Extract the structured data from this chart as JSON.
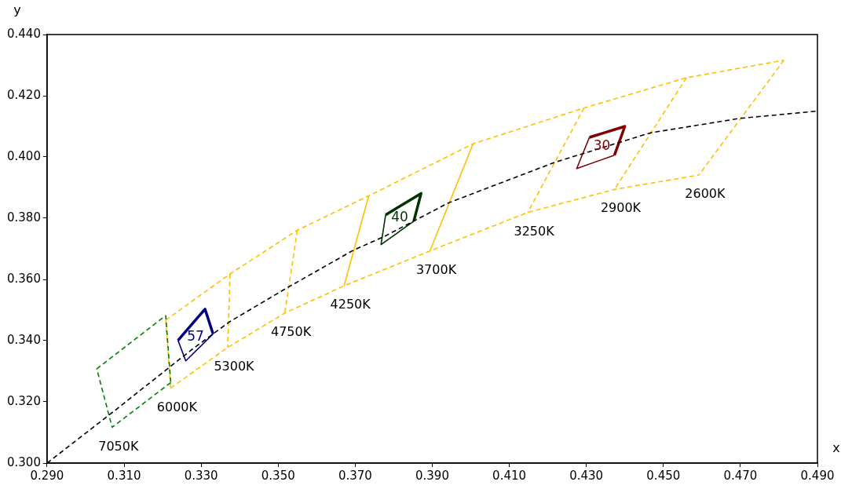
{
  "chart_data": {
    "type": "line",
    "xlabel": "x",
    "ylabel": "y",
    "xlim": [
      0.29,
      0.49
    ],
    "ylim": [
      0.3,
      0.44
    ],
    "xticks": [
      {
        "value": 0.29,
        "label": "0.290"
      },
      {
        "value": 0.31,
        "label": "0.310"
      },
      {
        "value": 0.33,
        "label": "0.330"
      },
      {
        "value": 0.35,
        "label": "0.350"
      },
      {
        "value": 0.37,
        "label": "0.370"
      },
      {
        "value": 0.39,
        "label": "0.390"
      },
      {
        "value": 0.41,
        "label": "0.410"
      },
      {
        "value": 0.43,
        "label": "0.430"
      },
      {
        "value": 0.45,
        "label": "0.450"
      },
      {
        "value": 0.47,
        "label": "0.470"
      },
      {
        "value": 0.49,
        "label": "0.490"
      }
    ],
    "yticks": [
      {
        "value": 0.3,
        "label": "0.300"
      },
      {
        "value": 0.32,
        "label": "0.320"
      },
      {
        "value": 0.34,
        "label": "0.340"
      },
      {
        "value": 0.36,
        "label": "0.360"
      },
      {
        "value": 0.38,
        "label": "0.380"
      },
      {
        "value": 0.4,
        "label": "0.400"
      },
      {
        "value": 0.42,
        "label": "0.420"
      },
      {
        "value": 0.44,
        "label": "0.440"
      }
    ],
    "grid": false,
    "legend": false,
    "marker": "none",
    "series": [
      {
        "color": "#000000",
        "line_style": "dashed",
        "x": [
          0.29,
          0.3063,
          0.3275,
          0.3373,
          0.3525,
          0.3696,
          0.3775,
          0.3942,
          0.4219,
          0.4467,
          0.4698,
          0.49
        ],
        "values": [
          0.3,
          0.3159,
          0.337,
          0.3461,
          0.3574,
          0.3696,
          0.374,
          0.385,
          0.3983,
          0.4079,
          0.4126,
          0.415
        ]
      },
      {
        "color": "#008000",
        "line_style": "dashed",
        "x": [
          0.3029,
          0.3208,
          0.3221
        ],
        "values": [
          0.3308,
          0.3482,
          0.3263
        ]
      },
      {
        "color": "#008000",
        "line_style": "dashed",
        "x": [
          0.3221,
          0.3069,
          0.3029
        ],
        "values": [
          0.3263,
          0.3117,
          0.3308
        ]
      },
      {
        "color": "#ffc000",
        "line_style": "dashed",
        "x": [
          0.3208,
          0.3375,
          0.355,
          0.3735,
          0.4006,
          0.4294,
          0.456,
          0.4813
        ],
        "values": [
          0.3467,
          0.3618,
          0.3761,
          0.3873,
          0.4043,
          0.416,
          0.4259,
          0.4316
        ]
      },
      {
        "color": "#ffc000",
        "line_style": "dashed",
        "x": [
          0.3221,
          0.3369,
          0.3517,
          0.3671,
          0.3894,
          0.4148,
          0.4373,
          0.4592
        ],
        "values": [
          0.3245,
          0.3378,
          0.349,
          0.3579,
          0.3693,
          0.3819,
          0.3894,
          0.3941
        ]
      },
      {
        "color": "#ffc000",
        "line_style": "dashed",
        "x": [
          0.3208,
          0.3221
        ],
        "values": [
          0.3467,
          0.3245
        ]
      },
      {
        "color": "#ffc000",
        "line_style": "dashed",
        "x": [
          0.3375,
          0.3369
        ],
        "values": [
          0.3618,
          0.3378
        ]
      },
      {
        "color": "#ffc000",
        "line_style": "dashed",
        "x": [
          0.355,
          0.3517
        ],
        "values": [
          0.3761,
          0.349
        ]
      },
      {
        "color": "#ffc000",
        "line_style": "solid",
        "x": [
          0.3735,
          0.3671
        ],
        "values": [
          0.3873,
          0.3579
        ]
      },
      {
        "color": "#ffc000",
        "line_style": "solid",
        "x": [
          0.4006,
          0.3894
        ],
        "values": [
          0.4043,
          0.3693
        ]
      },
      {
        "color": "#ffc000",
        "line_style": "dashed",
        "x": [
          0.4294,
          0.4148
        ],
        "values": [
          0.416,
          0.3819
        ]
      },
      {
        "color": "#ffc000",
        "line_style": "dashed",
        "x": [
          0.456,
          0.4373
        ],
        "values": [
          0.4259,
          0.3894
        ]
      },
      {
        "color": "#ffc000",
        "line_style": "dashed",
        "x": [
          0.4813,
          0.4592
        ],
        "values": [
          0.4316,
          0.3941
        ]
      },
      {
        "name": "57",
        "color": "#000080",
        "line_style": "solid",
        "x": [
          0.324,
          0.331,
          0.3331
        ],
        "values": [
          0.3401,
          0.3503,
          0.3422
        ]
      },
      {
        "color": "#000080",
        "line_style": "solid",
        "x": [
          0.3331,
          0.326,
          0.324
        ],
        "values": [
          0.3422,
          0.3334,
          0.3401
        ]
      },
      {
        "name": "40",
        "color": "#003300",
        "line_style": "solid",
        "x": [
          0.3779,
          0.3871,
          0.3852
        ],
        "values": [
          0.3811,
          0.3881,
          0.379
        ]
      },
      {
        "color": "#003300",
        "line_style": "solid",
        "x": [
          0.3852,
          0.3767,
          0.3779
        ],
        "values": [
          0.379,
          0.3714,
          0.3811
        ]
      },
      {
        "name": "30",
        "color": "#800000",
        "line_style": "solid",
        "x": [
          0.4308,
          0.44,
          0.4373
        ],
        "values": [
          0.4064,
          0.41,
          0.4006
        ]
      },
      {
        "color": "#800000",
        "line_style": "solid",
        "x": [
          0.4373,
          0.4275,
          0.4308
        ],
        "values": [
          0.4006,
          0.3962,
          0.4064
        ]
      }
    ],
    "annotations": [
      {
        "text": "7050K",
        "x": 0.3069,
        "y": 0.3117
      },
      {
        "text": "6000K",
        "x": 0.3221,
        "y": 0.3245
      },
      {
        "text": "5300K",
        "x": 0.3369,
        "y": 0.3378
      },
      {
        "text": "4750K",
        "x": 0.3517,
        "y": 0.349
      },
      {
        "text": "4250K",
        "x": 0.3671,
        "y": 0.3579
      },
      {
        "text": "3700K",
        "x": 0.3894,
        "y": 0.3693
      },
      {
        "text": "3250K",
        "x": 0.4148,
        "y": 0.3819
      },
      {
        "text": "2900K",
        "x": 0.4373,
        "y": 0.3894
      },
      {
        "text": "2600K",
        "x": 0.4592,
        "y": 0.3941
      }
    ]
  }
}
